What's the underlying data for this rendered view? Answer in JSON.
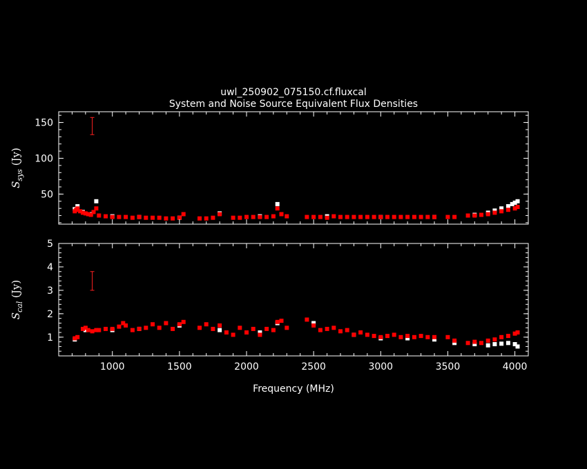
{
  "chart_data": {
    "type": "scatter",
    "title": "uwl_250902_075150.cf.fluxcal",
    "subtitle": "System and Noise Source Equivalent Flux Densities",
    "xlabel": "Frequency (MHz)",
    "xlim": [
      600,
      4100
    ],
    "xticks": [
      1000,
      1500,
      2000,
      2500,
      3000,
      3500,
      4000
    ],
    "colors": {
      "series_a": "#ff0000",
      "series_b": "#ffffff",
      "background": "#000000",
      "axes": "#ffffff"
    },
    "panels": [
      {
        "id": "ssys",
        "ylabel_main": "S",
        "ylabel_sub": "sys",
        "ylabel_unit": "(Jy)",
        "ylim": [
          8,
          165
        ],
        "yticks": [
          50,
          100,
          150
        ],
        "errorbar": {
          "x": 850,
          "y_low": 133,
          "y_high": 157
        },
        "series": [
          {
            "x": [
              720,
              730,
              740,
              760,
              780,
              800,
              820,
              840,
              860,
              880,
              900,
              950,
              1000,
              1050,
              1100,
              1150,
              1200,
              1250,
              1300,
              1350,
              1400,
              1450,
              1500,
              1530,
              1650,
              1700,
              1750,
              1800,
              1900,
              1950,
              2000,
              2050,
              2100,
              2150,
              2200,
              2230,
              2260,
              2300,
              2450,
              2500,
              2550,
              2600,
              2650,
              2700,
              2750,
              2800,
              2850,
              2900,
              2950,
              3000,
              3050,
              3100,
              3150,
              3200,
              3250,
              3300,
              3350,
              3400,
              3500,
              3550,
              3650,
              3700,
              3750,
              3800,
              3850,
              3900,
              3950,
              4000,
              4020
            ],
            "y": [
              26,
              28,
              30,
              26,
              24,
              23,
              22,
              21,
              25,
              30,
              20,
              19,
              18,
              18,
              18,
              17,
              18,
              17,
              17,
              17,
              16,
              16,
              17,
              22,
              16,
              16,
              17,
              22,
              17,
              17,
              18,
              18,
              18,
              18,
              19,
              30,
              22,
              19,
              18,
              18,
              18,
              17,
              19,
              18,
              18,
              18,
              18,
              18,
              18,
              18,
              18,
              18,
              18,
              18,
              18,
              18,
              18,
              18,
              18,
              18,
              20,
              20,
              21,
              22,
              24,
              26,
              28,
              30,
              32
            ]
          },
          {
            "x": [
              720,
              740,
              780,
              840,
              880,
              1000,
              1200,
              1500,
              1800,
              2100,
              2230,
              2600,
              3000,
              3400,
              3700,
              3800,
              3850,
              3900,
              3950,
              3980,
              4000,
              4020
            ],
            "y": [
              29,
              33,
              25,
              22,
              40,
              19,
              18,
              17,
              23,
              19,
              36,
              19,
              18,
              18,
              21,
              24,
              27,
              30,
              33,
              36,
              38,
              40
            ]
          }
        ]
      },
      {
        "id": "scal",
        "ylabel_main": "S",
        "ylabel_sub": "cal",
        "ylabel_unit": "(Jy)",
        "ylim": [
          0.2,
          5
        ],
        "yticks": [
          1,
          2,
          3,
          4,
          5
        ],
        "errorbar": {
          "x": 850,
          "y_low": 3.0,
          "y_high": 3.8
        },
        "series": [
          {
            "x": [
              720,
              740,
              780,
              800,
              820,
              850,
              880,
              900,
              950,
              1000,
              1050,
              1080,
              1100,
              1150,
              1200,
              1250,
              1300,
              1350,
              1400,
              1450,
              1500,
              1530,
              1650,
              1700,
              1750,
              1800,
              1850,
              1900,
              1950,
              2000,
              2050,
              2100,
              2150,
              2200,
              2230,
              2260,
              2300,
              2450,
              2500,
              2550,
              2600,
              2650,
              2700,
              2750,
              2800,
              2850,
              2900,
              2950,
              3000,
              3050,
              3100,
              3150,
              3200,
              3250,
              3300,
              3350,
              3400,
              3500,
              3550,
              3650,
              3700,
              3750,
              3800,
              3850,
              3900,
              3950,
              4000,
              4020
            ],
            "y": [
              0.95,
              1.0,
              1.35,
              1.4,
              1.3,
              1.25,
              1.3,
              1.3,
              1.35,
              1.35,
              1.45,
              1.6,
              1.5,
              1.3,
              1.35,
              1.4,
              1.55,
              1.4,
              1.6,
              1.35,
              1.55,
              1.65,
              1.4,
              1.55,
              1.35,
              1.5,
              1.2,
              1.1,
              1.4,
              1.2,
              1.35,
              1.1,
              1.35,
              1.3,
              1.65,
              1.7,
              1.4,
              1.75,
              1.5,
              1.3,
              1.35,
              1.4,
              1.25,
              1.3,
              1.1,
              1.2,
              1.1,
              1.05,
              1.0,
              1.05,
              1.1,
              1.0,
              1.05,
              1.0,
              1.05,
              1.0,
              1.0,
              1.0,
              0.85,
              0.75,
              0.8,
              0.75,
              0.85,
              0.9,
              1.0,
              1.05,
              1.15,
              1.2
            ]
          },
          {
            "x": [
              720,
              800,
              1000,
              1200,
              1500,
              1800,
              2100,
              2230,
              2500,
              2800,
              3000,
              3200,
              3400,
              3550,
              3700,
              3800,
              3850,
              3900,
              3950,
              4000,
              4020
            ],
            "y": [
              0.9,
              1.3,
              1.3,
              1.35,
              1.5,
              1.3,
              1.2,
              1.6,
              1.6,
              1.1,
              0.95,
              0.95,
              0.9,
              0.75,
              0.7,
              0.65,
              0.7,
              0.72,
              0.75,
              0.7,
              0.6
            ]
          }
        ]
      }
    ]
  }
}
